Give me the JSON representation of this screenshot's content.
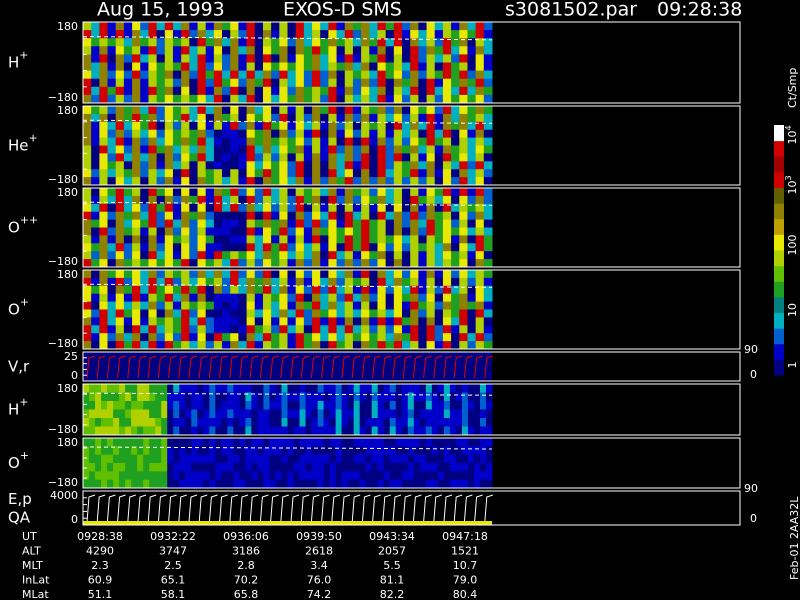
{
  "header": {
    "date": "Aug 15, 1993",
    "instrument": "EXOS-D SMS",
    "file": "s3081502.par",
    "time": "09:28:38"
  },
  "panels": [
    {
      "label": "H",
      "sup": "+",
      "top": "180",
      "bottom": "−180"
    },
    {
      "label": "He",
      "sup": "+",
      "top": "180",
      "bottom": "−180"
    },
    {
      "label": "O",
      "sup": "++",
      "top": "180",
      "bottom": "−180"
    },
    {
      "label": "O",
      "sup": "+",
      "top": "180",
      "bottom": "−180"
    },
    {
      "label": "V,r",
      "top": "25",
      "bottom": "0",
      "right_top": "90",
      "right_bottom": "0"
    },
    {
      "label": "H",
      "sup": "+",
      "top": "180",
      "bottom": "−180"
    },
    {
      "label": "O",
      "sup": "+",
      "top": "180",
      "bottom": "−180"
    },
    {
      "label": "E,p",
      "label2": "QA",
      "top": "4000",
      "bottom": "0",
      "right_top": "90",
      "right_bottom": "0"
    }
  ],
  "colorbar": {
    "unit": "Ct/Smp",
    "labels": [
      {
        "base": "1"
      },
      {
        "base": "10"
      },
      {
        "base": "100"
      },
      {
        "base": "10",
        "exp": "3"
      },
      {
        "base": "10",
        "exp": "4"
      }
    ]
  },
  "footer_rows": [
    [
      "UT",
      "0928:38",
      "0932:22",
      "0936:06",
      "0939:50",
      "0943:34",
      "0947:18"
    ],
    [
      "ALT",
      "4290",
      "3747",
      "3186",
      "2618",
      "2057",
      "1521"
    ],
    [
      "MLT",
      "2.3",
      "2.5",
      "2.8",
      "3.4",
      "5.5",
      "10.7"
    ],
    [
      "InLat",
      "60.9",
      "65.1",
      "70.2",
      "76.0",
      "81.1",
      "79.0"
    ],
    [
      "MLat",
      "51.1",
      "58.1",
      "65.8",
      "74.2",
      "82.2",
      "80.4"
    ]
  ],
  "side_label": "Feb-01 2AA32L"
}
